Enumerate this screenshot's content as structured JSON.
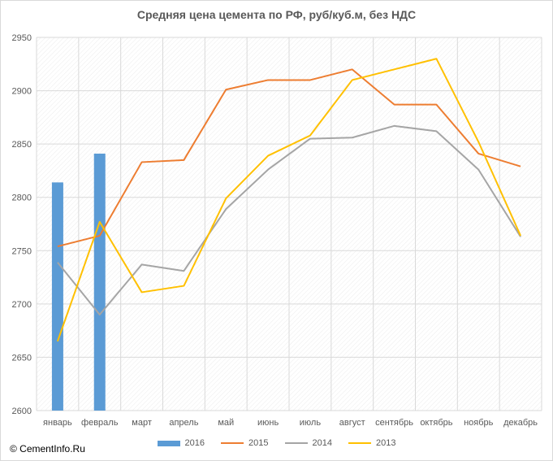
{
  "chart_data": {
    "type": "bar+line",
    "title": "Средняя цена цемента по РФ, руб/куб.м, без НДС",
    "categories": [
      "январь",
      "февраль",
      "март",
      "апрель",
      "май",
      "июнь",
      "июль",
      "август",
      "сентябрь",
      "октябрь",
      "ноябрь",
      "декабрь"
    ],
    "ylim": [
      2600,
      2950
    ],
    "yticks": [
      2600,
      2650,
      2700,
      2750,
      2800,
      2850,
      2900,
      2950
    ],
    "grid": true,
    "legend_position": "bottom",
    "series": [
      {
        "name": "2016",
        "kind": "bar",
        "color": "#5b9bd5",
        "values": [
          2814,
          2841,
          null,
          null,
          null,
          null,
          null,
          null,
          null,
          null,
          null,
          null
        ]
      },
      {
        "name": "2015",
        "kind": "line",
        "color": "#ed7d31",
        "values": [
          2754,
          2764,
          2833,
          2835,
          2901,
          2910,
          2910,
          2920,
          2887,
          2887,
          2841,
          2829
        ]
      },
      {
        "name": "2014",
        "kind": "line",
        "color": "#a5a5a5",
        "values": [
          2739,
          2690,
          2737,
          2731,
          2789,
          2826,
          2855,
          2856,
          2867,
          2862,
          2826,
          2763
        ]
      },
      {
        "name": "2013",
        "kind": "line",
        "color": "#ffc000",
        "values": [
          2665,
          2777,
          2711,
          2717,
          2799,
          2839,
          2858,
          2910,
          2920,
          2930,
          2852,
          2764
        ]
      }
    ]
  },
  "footer": {
    "copyright": "© CementInfo.Ru"
  }
}
